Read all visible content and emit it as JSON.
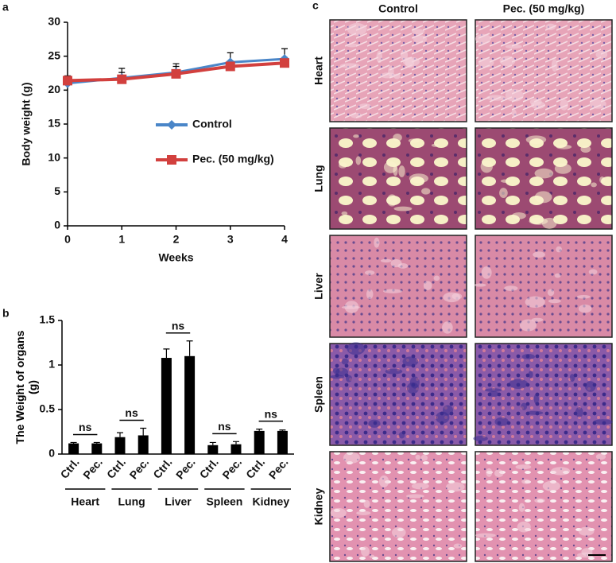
{
  "chart_data": [
    {
      "type": "line",
      "panel_label": "a",
      "x": [
        0,
        1,
        2,
        3,
        4
      ],
      "xlim": [
        0,
        4
      ],
      "xticks": [
        0,
        1,
        2,
        3,
        4
      ],
      "ylim": [
        0,
        30
      ],
      "yticks": [
        0,
        5,
        10,
        15,
        20,
        25,
        30
      ],
      "xlabel": "Weeks",
      "ylabel": "Body weight (g)",
      "series": [
        {
          "name": "Control",
          "color": "#4a86c8",
          "marker": "diamond",
          "values": [
            21.0,
            21.8,
            22.6,
            24.1,
            24.6
          ],
          "errors": [
            1.1,
            1.4,
            1.3,
            1.4,
            1.5
          ]
        },
        {
          "name": "Pec. (50 mg/kg)",
          "color": "#d2403e",
          "marker": "square",
          "values": [
            21.4,
            21.6,
            22.4,
            23.5,
            24.0
          ],
          "errors": [
            0.7,
            1.0,
            1.1,
            0.8,
            0.8
          ]
        }
      ]
    },
    {
      "type": "bar",
      "panel_label": "b",
      "ylabel": "The Weight of organs (g)",
      "categories": [
        "Ctrl.",
        "Pec.",
        "Ctrl.",
        "Pec.",
        "Ctrl.",
        "Pec.",
        "Ctrl.",
        "Pec.",
        "Ctrl.",
        "Pec."
      ],
      "groups": [
        "Heart",
        "Lung",
        "Liver",
        "Spleen",
        "Kidney"
      ],
      "annotations": [
        "ns",
        "ns",
        "ns",
        "ns",
        "ns"
      ],
      "values": [
        0.12,
        0.12,
        0.19,
        0.21,
        1.08,
        1.1,
        0.1,
        0.11,
        0.26,
        0.26
      ],
      "errors": [
        0.01,
        0.01,
        0.05,
        0.08,
        0.1,
        0.17,
        0.03,
        0.03,
        0.02,
        0.01
      ],
      "color": "#000000",
      "ylim": [
        0,
        1.5
      ],
      "yticks": [
        0,
        0.5,
        1,
        1.5
      ]
    }
  ],
  "histology": {
    "panel_label": "c",
    "columns": [
      "Control",
      "Pec. (50 mg/kg)"
    ],
    "rows": [
      "Heart",
      "Lung",
      "Liver",
      "Spleen",
      "Kidney"
    ]
  }
}
